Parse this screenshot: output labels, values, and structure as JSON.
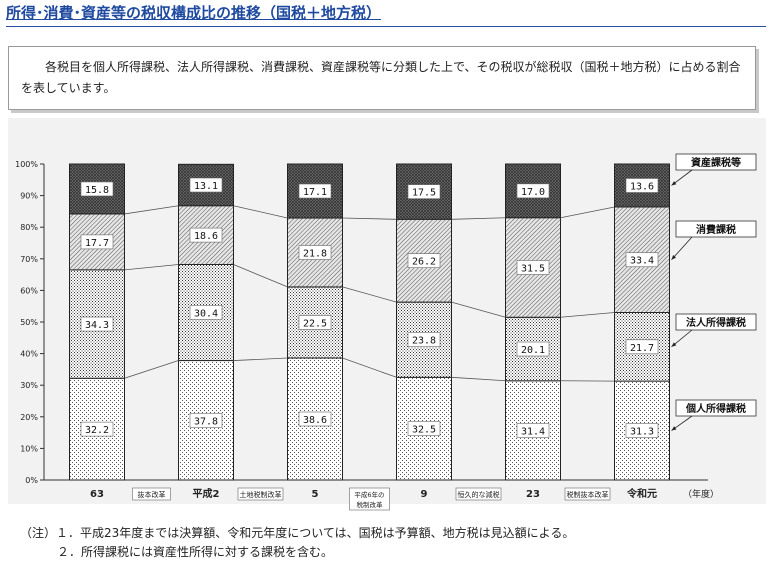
{
  "header": {
    "title": "所得･消費･資産等の税収構成比の推移（国税＋地方税）"
  },
  "description": "各税目を個人所得課税、法人所得課税、消費課税、資産課税等に分類した上で、その税収が総税収（国税＋地方税）に占める割合を表しています。",
  "chart_data": {
    "type": "bar",
    "stacked": true,
    "categories": [
      "63",
      "平成2",
      "5",
      "9",
      "23",
      "令和元"
    ],
    "x_unit": "（年度）",
    "y_ticks": [
      "0%",
      "10%",
      "20%",
      "30%",
      "40%",
      "50%",
      "60%",
      "70%",
      "80%",
      "90%",
      "100%"
    ],
    "ylim": [
      0,
      100
    ],
    "series": [
      {
        "name": "個人所得課税",
        "values": [
          32.2,
          37.8,
          38.6,
          32.5,
          31.4,
          31.3
        ],
        "value_labels": [
          "32.2",
          "37.8",
          "38.6",
          "32.5",
          "31.4",
          "31.3"
        ]
      },
      {
        "name": "法人所得課税",
        "values": [
          34.3,
          30.4,
          22.5,
          23.8,
          20.1,
          21.7
        ],
        "value_labels": [
          "34.3",
          "30.4",
          "22.5",
          "23.8",
          "20.1",
          "21.7"
        ]
      },
      {
        "name": "消費課税",
        "values": [
          17.7,
          18.6,
          21.8,
          26.2,
          31.5,
          33.4
        ],
        "value_labels": [
          "17.7",
          "18.6",
          "21.8",
          "26.2",
          "31.5",
          "33.4"
        ]
      },
      {
        "name": "資産課税等",
        "values": [
          15.8,
          13.1,
          17.1,
          17.5,
          17.0,
          13.6
        ],
        "value_labels": [
          "15.8",
          "13.1",
          "17.1",
          "17.5",
          "17.0",
          "13.6"
        ]
      }
    ],
    "legend_placement": "right",
    "annotations": [
      "抜本改革",
      "土地税制改革",
      "平成6年の税制改革",
      "恒久的な減税",
      "税制抜本改革"
    ]
  },
  "notes": [
    "（注）１．平成23年度までは決算額、令和元年度については、国税は予算額、地方税は見込額による。",
    "２．所得課税には資産性所得に対する課税を含む。"
  ],
  "colors": {
    "title": "#1f4aa0",
    "chart_bg": "#f2f2f2"
  }
}
